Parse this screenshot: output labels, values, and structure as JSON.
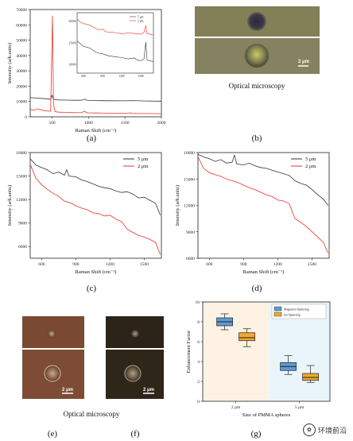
{
  "captions": {
    "a": "(a)",
    "b": "(b)",
    "c": "(c)",
    "d": "(d)",
    "e": "(e)",
    "f": "(f)",
    "g": "(g)"
  },
  "optical_label_top": "Optical microscopy",
  "optical_label_bottom": "Optical microscopy",
  "scale_bar": "2 μm",
  "watermark": "环境前沿",
  "chart_data": [
    {
      "panel": "a",
      "type": "line",
      "xlabel": "Raman Shift (cm⁻¹)",
      "ylabel": "Intensity (arb.units)",
      "xlim": [
        200,
        2000
      ],
      "ylim": [
        0,
        70000
      ],
      "xticks": [
        500,
        1000,
        1500,
        2000
      ],
      "yticks": [
        0,
        10000,
        20000,
        30000,
        40000,
        50000,
        60000,
        70000
      ],
      "series": [
        {
          "name": "5 μm",
          "color": "#333333",
          "x": [
            200,
            300,
            400,
            480,
            500,
            520,
            540,
            600,
            700,
            800,
            900,
            950,
            970,
            1000,
            1100,
            1300,
            1500,
            1600,
            1800,
            2000
          ],
          "y": [
            12500,
            12200,
            11800,
            11500,
            14000,
            11500,
            11200,
            11000,
            10900,
            10800,
            10800,
            11500,
            10900,
            10700,
            10600,
            10500,
            10400,
            10600,
            10300,
            10200
          ]
        },
        {
          "name": "2 μm",
          "color": "#e8312a",
          "x": [
            200,
            250,
            300,
            400,
            480,
            505,
            520,
            540,
            560,
            600,
            700,
            800,
            900,
            950,
            970,
            1000,
            1100,
            1300,
            1500,
            1580,
            1600,
            1650,
            1800,
            2000
          ],
          "y": [
            4800,
            4300,
            5200,
            4000,
            3600,
            66000,
            8000,
            3400,
            3200,
            3000,
            2900,
            2700,
            2800,
            3600,
            2700,
            2600,
            2500,
            2400,
            2300,
            2600,
            2300,
            2200,
            2100,
            2000
          ]
        }
      ],
      "inset": {
        "legend": [
          "5 μm",
          "2 μm"
        ],
        "xticks": [
          600,
          900,
          1200,
          1500
        ],
        "yticks": [
          10000,
          15000,
          20000
        ],
        "xlim": [
          500,
          1700
        ],
        "ylim": [
          8000,
          22000
        ]
      }
    },
    {
      "panel": "c",
      "type": "line",
      "xlabel": "Raman Shift (cm⁻¹)",
      "ylabel": "Intensity (arb.units)",
      "xlim": [
        500,
        1650
      ],
      "ylim": [
        4500,
        18000
      ],
      "xticks": [
        600,
        900,
        1200,
        1500
      ],
      "yticks": [
        6000,
        9000,
        12000,
        15000,
        18000
      ],
      "series": [
        {
          "name": "5 μm",
          "color": "#333333",
          "x": [
            500,
            550,
            600,
            650,
            700,
            750,
            800,
            820,
            840,
            900,
            950,
            1000,
            1050,
            1100,
            1150,
            1200,
            1250,
            1300,
            1350,
            1400,
            1450,
            1500,
            1550,
            1600,
            1640
          ],
          "y": [
            17200,
            16400,
            16100,
            15800,
            15300,
            15500,
            15100,
            15800,
            15000,
            14900,
            14500,
            14300,
            14000,
            13700,
            13500,
            13400,
            13100,
            12900,
            13000,
            12700,
            12200,
            12300,
            11900,
            11500,
            10000
          ]
        },
        {
          "name": "2 μm",
          "color": "#e8312a",
          "x": [
            500,
            550,
            600,
            650,
            700,
            750,
            800,
            850,
            900,
            950,
            1000,
            1050,
            1100,
            1150,
            1200,
            1250,
            1300,
            1350,
            1400,
            1450,
            1500,
            1550,
            1600,
            1640
          ],
          "y": [
            16500,
            14700,
            13900,
            13300,
            12800,
            12400,
            11800,
            11600,
            11200,
            10900,
            10700,
            10300,
            10200,
            9900,
            10000,
            9500,
            9200,
            8200,
            7800,
            7400,
            7200,
            6900,
            6500,
            5000
          ]
        }
      ]
    },
    {
      "panel": "d",
      "type": "line",
      "xlabel": "Raman Shift (cm⁻¹)",
      "ylabel": "Intensity (arb.units)",
      "xlim": [
        500,
        1650
      ],
      "ylim": [
        6000,
        18000
      ],
      "xticks": [
        600,
        900,
        1200,
        1500
      ],
      "yticks": [
        6000,
        9000,
        12000,
        15000,
        18000
      ],
      "series": [
        {
          "name": "5 μm",
          "color": "#333333",
          "x": [
            500,
            550,
            600,
            650,
            700,
            750,
            800,
            820,
            840,
            900,
            950,
            1000,
            1050,
            1100,
            1150,
            1200,
            1250,
            1300,
            1350,
            1400,
            1450,
            1500,
            1550,
            1600,
            1640
          ],
          "y": [
            17800,
            17500,
            17300,
            17000,
            17200,
            16800,
            16900,
            17700,
            16700,
            16600,
            16800,
            16500,
            16300,
            16200,
            16000,
            15800,
            15600,
            15400,
            14800,
            14500,
            14300,
            13800,
            13200,
            12700,
            12000
          ]
        },
        {
          "name": "2 μm",
          "color": "#e8312a",
          "x": [
            500,
            550,
            600,
            650,
            700,
            750,
            800,
            850,
            900,
            950,
            1000,
            1050,
            1100,
            1150,
            1200,
            1250,
            1300,
            1350,
            1400,
            1450,
            1500,
            1550,
            1600,
            1640
          ],
          "y": [
            17500,
            16200,
            15700,
            15500,
            15300,
            15000,
            14800,
            14600,
            14300,
            14000,
            13800,
            13500,
            13200,
            13000,
            12600,
            12500,
            12200,
            10500,
            10100,
            9600,
            9000,
            8400,
            7800,
            6600
          ]
        }
      ]
    },
    {
      "panel": "g",
      "type": "box",
      "xlabel": "Size of PMMA spheres",
      "ylabel": "Enhancement Factor",
      "ylim": [
        0,
        10
      ],
      "yticks": [
        0,
        2,
        4,
        6,
        8,
        10
      ],
      "categories": [
        "2 μm",
        "5 μm"
      ],
      "series": [
        {
          "name": "Magnetron Sputtering",
          "color": "#5b9bd5",
          "boxes": [
            {
              "min": 7.2,
              "q1": 7.6,
              "median": 8.0,
              "q3": 8.4,
              "max": 8.8
            },
            {
              "min": 2.7,
              "q1": 3.1,
              "median": 3.5,
              "q3": 3.9,
              "max": 4.6
            }
          ]
        },
        {
          "name": "Ion Sputtering",
          "color": "#f0a830",
          "boxes": [
            {
              "min": 5.5,
              "q1": 6.1,
              "median": 6.4,
              "q3": 6.9,
              "max": 7.3
            },
            {
              "min": 1.9,
              "q1": 2.1,
              "median": 2.4,
              "q3": 2.8,
              "max": 3.6
            }
          ]
        }
      ]
    }
  ]
}
